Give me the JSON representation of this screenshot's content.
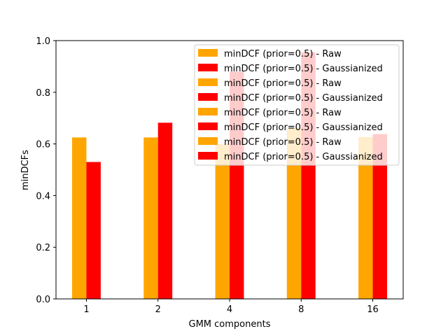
{
  "chart_data": {
    "type": "bar",
    "title": "",
    "xlabel": "GMM components",
    "ylabel": "minDCFs",
    "categories": [
      "1",
      "2",
      "4",
      "8",
      "16"
    ],
    "ylim": [
      0,
      1.0
    ],
    "yticks": [
      "0.0",
      "0.2",
      "0.4",
      "0.6",
      "0.8",
      "1.0"
    ],
    "series": [
      {
        "name": "minDCF (prior=0.5) - Raw",
        "color": "#ffa500",
        "values": [
          0.625,
          0.625,
          0.6,
          0.662,
          0.627
        ]
      },
      {
        "name": "minDCF (prior=0.5) - Gaussianized",
        "color": "#ff0000",
        "values": [
          0.53,
          0.682,
          0.88,
          0.955,
          0.638
        ]
      }
    ],
    "legend": {
      "placement": "top-right",
      "entries": [
        {
          "label": "minDCF (prior=0.5) - Raw",
          "color": "#ffa500"
        },
        {
          "label": "minDCF (prior=0.5) - Gaussianized",
          "color": "#ff0000"
        },
        {
          "label": "minDCF (prior=0.5) - Raw",
          "color": "#ffa500"
        },
        {
          "label": "minDCF (prior=0.5) - Gaussianized",
          "color": "#ff0000"
        },
        {
          "label": "minDCF (prior=0.5) - Raw",
          "color": "#ffa500"
        },
        {
          "label": "minDCF (prior=0.5) - Gaussianized",
          "color": "#ff0000"
        },
        {
          "label": "minDCF (prior=0.5) - Raw",
          "color": "#ffa500"
        },
        {
          "label": "minDCF (prior=0.5) - Gaussianized",
          "color": "#ff0000"
        }
      ]
    }
  }
}
